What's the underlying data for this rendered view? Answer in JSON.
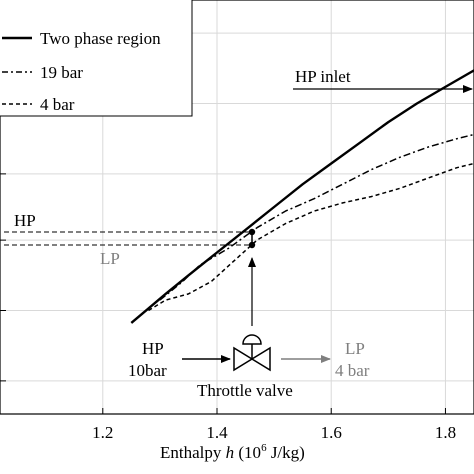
{
  "chart_data": {
    "type": "line",
    "xlabel_prefix": "Enthalpy ",
    "xlabel_var": "h",
    "xlabel_unit_open": " (10",
    "xlabel_exp": "6",
    "xlabel_unit_close": " J/kg)",
    "xlim": [
      1.02,
      1.85
    ],
    "ylim": [
      0,
      1
    ],
    "xticks": [
      1.2,
      1.4,
      1.6,
      1.8
    ],
    "xtick_labels": [
      "1.2",
      "1.4",
      "1.6",
      "1.8"
    ],
    "yticks": [
      0.08,
      0.25,
      0.42,
      0.58,
      0.75,
      0.92
    ],
    "grid": true,
    "legend_position": "top-left",
    "series": [
      {
        "name": "Two phase region",
        "style": "solid",
        "x": [
          1.25,
          1.28,
          1.31,
          1.35,
          1.4,
          1.45,
          1.5,
          1.55,
          1.6,
          1.65,
          1.7,
          1.75,
          1.8,
          1.85
        ],
        "y": [
          0.22,
          0.255,
          0.29,
          0.335,
          0.39,
          0.445,
          0.5,
          0.555,
          0.605,
          0.655,
          0.705,
          0.75,
          0.79,
          0.83
        ]
      },
      {
        "name": "19 bar",
        "style": "dashdot",
        "x": [
          1.3,
          1.34,
          1.37,
          1.42,
          1.47,
          1.52,
          1.57,
          1.62,
          1.67,
          1.72,
          1.77,
          1.82,
          1.85
        ],
        "y": [
          0.275,
          0.32,
          0.36,
          0.4,
          0.45,
          0.49,
          0.52,
          0.555,
          0.59,
          0.62,
          0.645,
          0.665,
          0.675
        ]
      },
      {
        "name": "4 bar",
        "style": "dashed",
        "x": [
          1.28,
          1.31,
          1.35,
          1.39,
          1.43,
          1.47,
          1.52,
          1.57,
          1.62,
          1.67,
          1.72,
          1.77,
          1.82,
          1.85
        ],
        "y": [
          0.25,
          0.275,
          0.29,
          0.32,
          0.37,
          0.42,
          0.46,
          0.49,
          0.51,
          0.525,
          0.545,
          0.57,
          0.595,
          0.605
        ]
      }
    ],
    "annotations": {
      "hp_inlet": "HP inlet",
      "hp_line_label": "HP",
      "lp_line_label": "LP",
      "valve_in_1": "HP",
      "valve_in_2": "10bar",
      "valve_out_1": "LP",
      "valve_out_2": "4 bar",
      "valve_label": "Throttle valve"
    },
    "colors": {
      "main": "#000000",
      "lp": "#7f7f7f",
      "grid": "#d9d9d9"
    }
  }
}
